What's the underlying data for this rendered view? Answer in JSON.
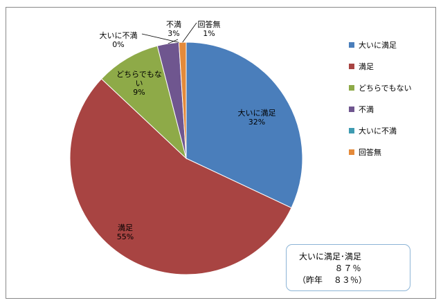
{
  "chart_data": {
    "type": "pie",
    "categories": [
      "大いに満足",
      "満足",
      "どちらでもない",
      "不満",
      "大いに不満",
      "回答無"
    ],
    "values": [
      32,
      55,
      9,
      3,
      0,
      1
    ],
    "value_labels": [
      "32%",
      "55%",
      "9%",
      "3%",
      "0%",
      "1%"
    ],
    "slice_labels": [
      "大いに満足",
      "満足",
      "どちらでもない",
      "不満",
      "大いに不満",
      "回答無"
    ],
    "colors": [
      "#4a7ebb",
      "#a84442",
      "#8eaa48",
      "#6f568f",
      "#3f9bb1",
      "#e48a3a"
    ],
    "legend_position": "right",
    "start": "top",
    "direction": "clockwise"
  },
  "summary": {
    "line1": "大いに満足･満足",
    "line2": "８７％",
    "line3": "（昨年　 ８３％）"
  }
}
